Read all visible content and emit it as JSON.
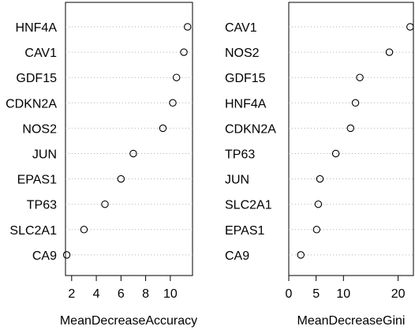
{
  "chart_data": [
    {
      "type": "scatter",
      "variant": "dotchart",
      "xlabel": "MeanDecreaseAccuracy",
      "xlim": [
        1.5,
        11.8
      ],
      "xticks": [
        2,
        4,
        6,
        8,
        10
      ],
      "grid": "dotted horizontal lines per row",
      "categories": [
        "HNF4A",
        "CAV1",
        "GDF15",
        "CDKN2A",
        "NOS2",
        "JUN",
        "EPAS1",
        "TP63",
        "SLC2A1",
        "CA9"
      ],
      "values": [
        11.4,
        11.1,
        10.5,
        10.2,
        9.4,
        7.0,
        6.0,
        4.7,
        3.0,
        1.6
      ]
    },
    {
      "type": "scatter",
      "variant": "dotchart",
      "xlabel": "MeanDecreaseGini",
      "xlim": [
        0,
        22.8
      ],
      "xticks": [
        0,
        5,
        10,
        20
      ],
      "grid": "dotted horizontal lines per row",
      "categories": [
        "CAV1",
        "NOS2",
        "GDF15",
        "HNF4A",
        "CDKN2A",
        "TP63",
        "JUN",
        "SLC2A1",
        "EPAS1",
        "CA9"
      ],
      "values": [
        22.2,
        18.4,
        13.0,
        12.2,
        11.3,
        8.6,
        5.7,
        5.4,
        5.1,
        2.2
      ]
    }
  ]
}
